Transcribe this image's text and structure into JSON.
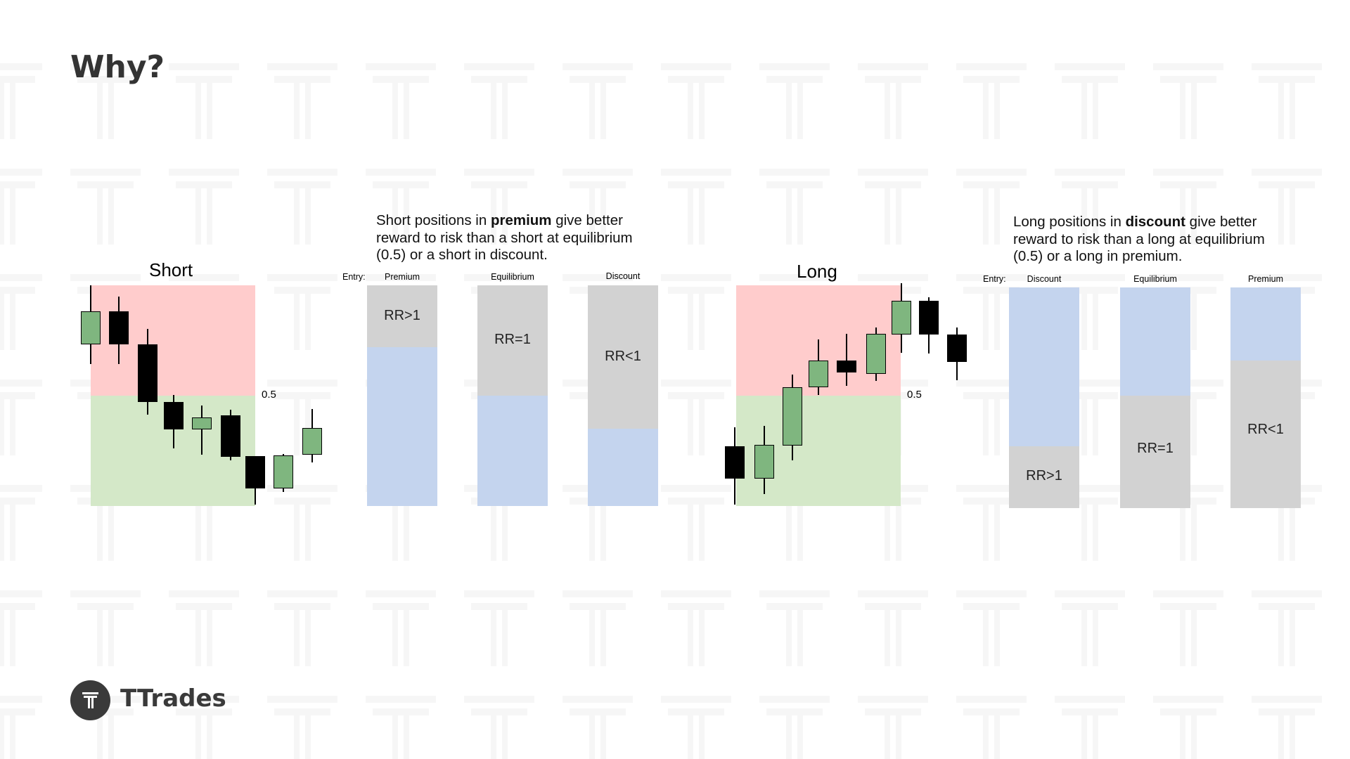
{
  "slide": {
    "title": "Why?"
  },
  "short": {
    "chart_title": "Short",
    "mid_label": "0.5",
    "description": {
      "pre": "Short positions in ",
      "bold": "premium",
      "post": " give better reward to risk than a short at equilibrium (0.5) or a short in discount."
    },
    "entry_label": "Entry:",
    "bars": [
      {
        "name": "Premium",
        "rr": "RR>1",
        "gray_fraction": 0.28
      },
      {
        "name": "Equilibrium",
        "rr": "RR=1",
        "gray_fraction": 0.5
      },
      {
        "name": "Discount",
        "rr": "RR<1",
        "gray_fraction": 0.65
      }
    ]
  },
  "long": {
    "chart_title": "Long",
    "mid_label": "0.5",
    "description": {
      "pre": "Long positions in ",
      "bold": "discount",
      "post": " give better reward to risk than a long at equilibrium (0.5) or a long in premium."
    },
    "entry_label": "Entry:",
    "bars": [
      {
        "name": "Discount",
        "rr": "RR>1",
        "blue_fraction": 0.72
      },
      {
        "name": "Equilibrium",
        "rr": "RR=1",
        "blue_fraction": 0.49
      },
      {
        "name": "Premium",
        "rr": "RR<1",
        "blue_fraction": 0.33
      }
    ]
  },
  "colors": {
    "premium_zone": "#ffcccc",
    "discount_zone": "#d4e8c8",
    "rr_gray": "#d2d2d2",
    "rr_blue": "#c4d4ee",
    "bull_candle": "#7fb67f",
    "bear_candle": "#000000"
  },
  "brand": {
    "name": "TTrades",
    "icon": "ttrades-logo-icon"
  }
}
